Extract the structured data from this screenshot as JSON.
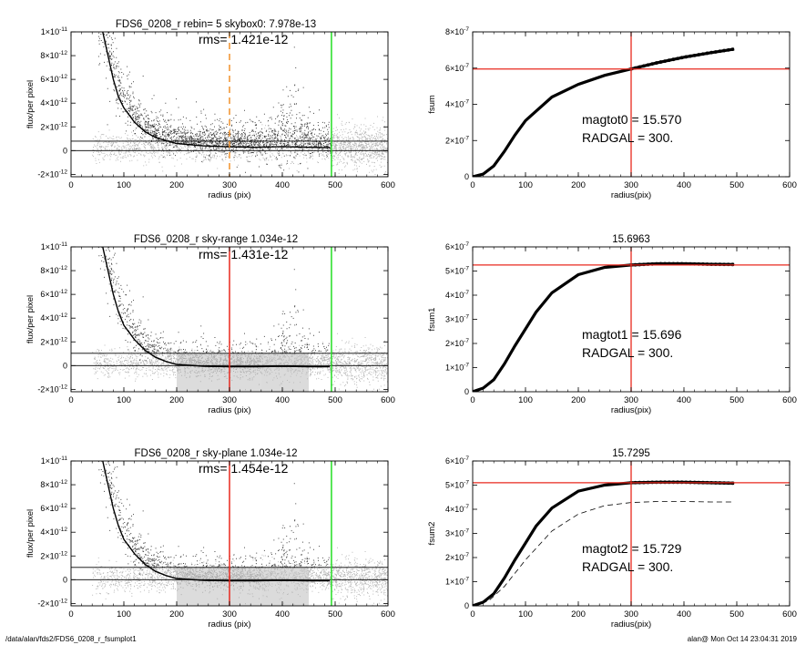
{
  "footer": {
    "path": "/data/alan/fds2/FDS6_0208_r_fsumplot1",
    "stamp": "alan@  Mon Oct 14 23:04:31 2019"
  },
  "colors": {
    "black": "#000000",
    "red": "#e8281e",
    "green": "#22dd22",
    "orange": "#f0902a",
    "points_dark": "#333333",
    "points_light": "#b4b4b4"
  },
  "chart_data": [
    {
      "type": "scatter",
      "title": "FDS6_0208_r rebin= 5    skybox0:  7.978e-13",
      "annotation": "rms= 1.421e-12",
      "xlabel": "radius (pix)",
      "ylabel": "flux/per pixel",
      "xlim": [
        0,
        600
      ],
      "ylim": [
        -2.2e-12,
        1e-11
      ],
      "xticks": [
        "0",
        "100",
        "200",
        "300",
        "400",
        "500",
        "600"
      ],
      "yticks": [
        {
          "mant": "-2×10",
          "exp": "-12",
          "value": -2e-12
        },
        {
          "mant": "0",
          "exp": "",
          "value": 0
        },
        {
          "mant": "2×10",
          "exp": "-12",
          "value": 2e-12
        },
        {
          "mant": "4×10",
          "exp": "-12",
          "value": 4e-12
        },
        {
          "mant": "6×10",
          "exp": "-12",
          "value": 6e-12
        },
        {
          "mant": "8×10",
          "exp": "-12",
          "value": 8e-12
        },
        {
          "mant": "1×10",
          "exp": "-11",
          "value": 1e-11
        }
      ],
      "hlines": [
        0,
        7.978e-13
      ],
      "vlines": [
        {
          "x": 300,
          "color": "#f0902a",
          "dashed": true
        },
        {
          "x": 493,
          "color": "#22dd22",
          "dashed": false
        }
      ],
      "sky_level": 7.978e-13,
      "background_style": "wide",
      "profile": [
        [
          60,
          1e-11
        ],
        [
          70,
          8e-12
        ],
        [
          80,
          6e-12
        ],
        [
          90,
          4.5e-12
        ],
        [
          100,
          3.6e-12
        ],
        [
          120,
          2.4e-12
        ],
        [
          140,
          1.6e-12
        ],
        [
          160,
          1.1e-12
        ],
        [
          180,
          8.5e-13
        ],
        [
          200,
          6e-13
        ],
        [
          250,
          4e-13
        ],
        [
          300,
          3.2e-13
        ],
        [
          350,
          2.8e-13
        ],
        [
          400,
          3.4e-13
        ],
        [
          450,
          2.8e-13
        ],
        [
          490,
          2.5e-13
        ]
      ]
    },
    {
      "type": "line",
      "title": "",
      "ylabel": "fsum",
      "xlabel": "radius(pix)",
      "xlim": [
        0,
        600
      ],
      "ylim": [
        0,
        8e-07
      ],
      "xticks": [
        "0",
        "100",
        "200",
        "300",
        "400",
        "500",
        "600"
      ],
      "yticks": [
        {
          "mant": "0",
          "exp": "",
          "value": 0
        },
        {
          "mant": "2×10",
          "exp": "-7",
          "value": 2e-07
        },
        {
          "mant": "4×10",
          "exp": "-7",
          "value": 4e-07
        },
        {
          "mant": "6×10",
          "exp": "-7",
          "value": 6e-07
        },
        {
          "mant": "8×10",
          "exp": "-7",
          "value": 8e-07
        }
      ],
      "annotation_lines": [
        "magtot0 =  15.570",
        "RADGAL =    300."
      ],
      "hline": 5.95e-07,
      "vline": 300,
      "curve": [
        [
          0,
          0
        ],
        [
          20,
          1.5e-08
        ],
        [
          40,
          6e-08
        ],
        [
          60,
          1.4e-07
        ],
        [
          80,
          2.3e-07
        ],
        [
          100,
          3.1e-07
        ],
        [
          150,
          4.4e-07
        ],
        [
          200,
          5.1e-07
        ],
        [
          250,
          5.6e-07
        ],
        [
          300,
          5.95e-07
        ],
        [
          350,
          6.3e-07
        ],
        [
          400,
          6.6e-07
        ],
        [
          450,
          6.85e-07
        ],
        [
          495,
          7.05e-07
        ]
      ],
      "dashed_curve": []
    },
    {
      "type": "scatter",
      "title": "FDS6_0208_r sky-range  1.034e-12",
      "annotation": "rms= 1.431e-12",
      "xlabel": "radius (pix)",
      "ylabel": "flux/per pixel",
      "xlim": [
        0,
        600
      ],
      "ylim": [
        -2.2e-12,
        1e-11
      ],
      "xticks": [
        "0",
        "100",
        "200",
        "300",
        "400",
        "500",
        "600"
      ],
      "yticks": [
        {
          "mant": "-2×10",
          "exp": "-12",
          "value": -2e-12
        },
        {
          "mant": "0",
          "exp": "",
          "value": 0
        },
        {
          "mant": "2×10",
          "exp": "-12",
          "value": 2e-12
        },
        {
          "mant": "4×10",
          "exp": "-12",
          "value": 4e-12
        },
        {
          "mant": "6×10",
          "exp": "-12",
          "value": 6e-12
        },
        {
          "mant": "8×10",
          "exp": "-12",
          "value": 8e-12
        },
        {
          "mant": "1×10",
          "exp": "-11",
          "value": 1e-11
        }
      ],
      "hlines": [
        0,
        1.034e-12
      ],
      "vlines": [
        {
          "x": 300,
          "color": "#e8281e",
          "dashed": false
        },
        {
          "x": 493,
          "color": "#22dd22",
          "dashed": false
        }
      ],
      "sky_level": 1.034e-12,
      "background_style": "bands",
      "profile": [
        [
          60,
          1e-11
        ],
        [
          70,
          8e-12
        ],
        [
          80,
          6e-12
        ],
        [
          90,
          4.5e-12
        ],
        [
          100,
          3.4e-12
        ],
        [
          120,
          2.2e-12
        ],
        [
          140,
          1.3e-12
        ],
        [
          160,
          7e-13
        ],
        [
          180,
          3.5e-13
        ],
        [
          200,
          1e-13
        ],
        [
          250,
          -5e-14
        ],
        [
          300,
          -1e-13
        ],
        [
          350,
          -1e-13
        ],
        [
          400,
          -5e-14
        ],
        [
          450,
          -1e-13
        ],
        [
          490,
          -1e-13
        ]
      ]
    },
    {
      "type": "line",
      "title": "15.6963",
      "ylabel": "fsum1",
      "xlabel": "radius(pix)",
      "xlim": [
        0,
        600
      ],
      "ylim": [
        0,
        6e-07
      ],
      "xticks": [
        "0",
        "100",
        "200",
        "300",
        "400",
        "500",
        "600"
      ],
      "yticks": [
        {
          "mant": "0",
          "exp": "",
          "value": 0
        },
        {
          "mant": "1×10",
          "exp": "-7",
          "value": 1e-07
        },
        {
          "mant": "2×10",
          "exp": "-7",
          "value": 2e-07
        },
        {
          "mant": "3×10",
          "exp": "-7",
          "value": 3e-07
        },
        {
          "mant": "4×10",
          "exp": "-7",
          "value": 4e-07
        },
        {
          "mant": "5×10",
          "exp": "-7",
          "value": 5e-07
        },
        {
          "mant": "6×10",
          "exp": "-7",
          "value": 6e-07
        }
      ],
      "annotation_lines": [
        "magtot1 =  15.696",
        "RADGAL =    300."
      ],
      "hline": 5.25e-07,
      "vline": 300,
      "curve": [
        [
          0,
          0
        ],
        [
          20,
          1.5e-08
        ],
        [
          40,
          5e-08
        ],
        [
          60,
          1.15e-07
        ],
        [
          80,
          1.9e-07
        ],
        [
          100,
          2.6e-07
        ],
        [
          120,
          3.3e-07
        ],
        [
          150,
          4.1e-07
        ],
        [
          200,
          4.85e-07
        ],
        [
          250,
          5.15e-07
        ],
        [
          300,
          5.25e-07
        ],
        [
          350,
          5.3e-07
        ],
        [
          400,
          5.3e-07
        ],
        [
          450,
          5.28e-07
        ],
        [
          495,
          5.27e-07
        ]
      ],
      "dashed_curve": []
    },
    {
      "type": "scatter",
      "title": "FDS6_0208_r sky-plane  1.034e-12",
      "annotation": "rms= 1.454e-12",
      "xlabel": "radius (pix)",
      "ylabel": "flux/per pixel",
      "xlim": [
        0,
        600
      ],
      "ylim": [
        -2.2e-12,
        1e-11
      ],
      "xticks": [
        "0",
        "100",
        "200",
        "300",
        "400",
        "500",
        "600"
      ],
      "yticks": [
        {
          "mant": "-2×10",
          "exp": "-12",
          "value": -2e-12
        },
        {
          "mant": "0",
          "exp": "",
          "value": 0
        },
        {
          "mant": "2×10",
          "exp": "-12",
          "value": 2e-12
        },
        {
          "mant": "4×10",
          "exp": "-12",
          "value": 4e-12
        },
        {
          "mant": "6×10",
          "exp": "-12",
          "value": 6e-12
        },
        {
          "mant": "8×10",
          "exp": "-12",
          "value": 8e-12
        },
        {
          "mant": "1×10",
          "exp": "-11",
          "value": 1e-11
        }
      ],
      "hlines": [
        0,
        1.034e-12
      ],
      "vlines": [
        {
          "x": 300,
          "color": "#e8281e",
          "dashed": false
        },
        {
          "x": 493,
          "color": "#22dd22",
          "dashed": false
        }
      ],
      "sky_level": 1.034e-12,
      "background_style": "bands",
      "profile": [
        [
          60,
          1e-11
        ],
        [
          70,
          8e-12
        ],
        [
          80,
          6e-12
        ],
        [
          90,
          4.5e-12
        ],
        [
          100,
          3.4e-12
        ],
        [
          120,
          2.2e-12
        ],
        [
          140,
          1.3e-12
        ],
        [
          160,
          7e-13
        ],
        [
          180,
          3.5e-13
        ],
        [
          200,
          1e-13
        ],
        [
          250,
          -5e-14
        ],
        [
          300,
          -1e-13
        ],
        [
          350,
          -1e-13
        ],
        [
          400,
          -5e-14
        ],
        [
          450,
          -1e-13
        ],
        [
          490,
          -1e-13
        ]
      ]
    },
    {
      "type": "line",
      "title": "15.7295",
      "ylabel": "fsum2",
      "xlabel": "radius(pix)",
      "xlim": [
        0,
        600
      ],
      "ylim": [
        0,
        6e-07
      ],
      "xticks": [
        "0",
        "100",
        "200",
        "300",
        "400",
        "500",
        "600"
      ],
      "yticks": [
        {
          "mant": "0",
          "exp": "",
          "value": 0
        },
        {
          "mant": "1×10",
          "exp": "-7",
          "value": 1e-07
        },
        {
          "mant": "2×10",
          "exp": "-7",
          "value": 2e-07
        },
        {
          "mant": "3×10",
          "exp": "-7",
          "value": 3e-07
        },
        {
          "mant": "4×10",
          "exp": "-7",
          "value": 4e-07
        },
        {
          "mant": "5×10",
          "exp": "-7",
          "value": 5e-07
        },
        {
          "mant": "6×10",
          "exp": "-7",
          "value": 6e-07
        }
      ],
      "annotation_lines": [
        "magtot2 =  15.729",
        "RADGAL =    300."
      ],
      "hline": 5.1e-07,
      "vline": 300,
      "curve": [
        [
          0,
          0
        ],
        [
          20,
          1.5e-08
        ],
        [
          40,
          5e-08
        ],
        [
          60,
          1.15e-07
        ],
        [
          80,
          1.9e-07
        ],
        [
          100,
          2.6e-07
        ],
        [
          120,
          3.3e-07
        ],
        [
          150,
          4.05e-07
        ],
        [
          200,
          4.75e-07
        ],
        [
          250,
          5e-07
        ],
        [
          300,
          5.1e-07
        ],
        [
          350,
          5.12e-07
        ],
        [
          400,
          5.12e-07
        ],
        [
          450,
          5.1e-07
        ],
        [
          495,
          5.08e-07
        ]
      ],
      "dashed_curve": [
        [
          0,
          0
        ],
        [
          30,
          2e-08
        ],
        [
          60,
          8e-08
        ],
        [
          100,
          1.9e-07
        ],
        [
          150,
          3.1e-07
        ],
        [
          200,
          3.8e-07
        ],
        [
          250,
          4.15e-07
        ],
        [
          300,
          4.28e-07
        ],
        [
          350,
          4.32e-07
        ],
        [
          400,
          4.32e-07
        ],
        [
          450,
          4.3e-07
        ],
        [
          495,
          4.3e-07
        ]
      ]
    }
  ]
}
